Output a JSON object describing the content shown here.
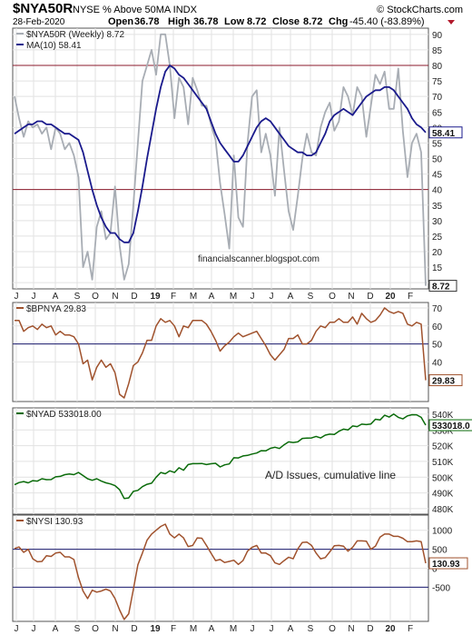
{
  "header": {
    "symbol": "$NYA50R",
    "description": "NYSE % Above 50MA  INDX",
    "watermark": "© StockCharts.com",
    "date": "28-Feb-2020",
    "open_label": "Open",
    "open": "36.78",
    "high_label": "High",
    "high": "36.78",
    "low_label": "Low",
    "low": "8.72",
    "close_label": "Close",
    "close": "8.72",
    "chg_label": "Chg",
    "chg": "-45.40 (-83.89%)"
  },
  "colors": {
    "price": "#a8adb4",
    "ma": "#1a1a8c",
    "hline_red": "#8b1a2b",
    "hline_navy": "#1a1a6e",
    "bpnya": "#a0522d",
    "nyad": "#0a6b0a",
    "nysi": "#a0522d",
    "grid": "#e2e2e2",
    "down_arrow": "#b2182b"
  },
  "x_labels": [
    "J",
    "J",
    "A",
    "S",
    "O",
    "N",
    "D",
    "19",
    "F",
    "M",
    "A",
    "M",
    "J",
    "J",
    "A",
    "S",
    "O",
    "N",
    "D",
    "20",
    "F"
  ],
  "chart_data": [
    {
      "type": "line",
      "panel": "nya50r",
      "series": [
        {
          "name": "$NYA50R (Weekly) 8.72",
          "legend": "$NYA50R (Weekly) 8.72",
          "values": [
            70,
            63,
            57,
            62,
            60,
            61,
            58,
            60,
            53,
            60,
            58,
            53,
            55,
            51,
            44,
            15,
            20,
            11,
            28,
            33,
            24,
            26,
            41,
            22,
            11,
            16,
            35,
            55,
            75,
            80,
            85,
            77,
            90,
            90,
            80,
            63,
            76,
            73,
            61,
            76,
            72,
            67,
            67,
            61,
            56,
            42,
            32,
            21,
            51,
            31,
            28,
            55,
            70,
            72,
            52,
            58,
            51,
            38,
            60,
            46,
            33,
            27,
            38,
            50,
            58,
            52,
            51,
            60,
            65,
            68,
            59,
            62,
            73,
            70,
            64,
            73,
            70,
            57,
            67,
            77,
            74,
            78,
            66,
            66,
            79,
            59,
            44,
            55,
            58,
            52,
            9
          ]
        },
        {
          "name": "MA(10) 58.41",
          "legend": "MA(10) 58.41",
          "values": [
            58,
            59,
            60,
            61,
            61,
            62,
            62,
            61,
            61,
            60,
            59,
            58,
            58,
            57,
            56,
            52,
            46,
            40,
            35,
            31,
            28,
            26,
            26,
            24,
            23,
            23,
            26,
            33,
            41,
            50,
            58,
            66,
            73,
            78,
            80,
            79,
            77,
            76,
            74,
            72,
            70,
            68,
            66,
            62,
            58,
            55,
            53,
            51,
            49,
            49,
            51,
            54,
            57,
            60,
            62,
            63,
            62,
            60,
            58,
            56,
            54,
            53,
            52,
            52,
            51,
            51,
            52,
            55,
            58,
            62,
            64,
            65,
            66,
            65,
            64,
            66,
            68,
            70,
            71,
            72,
            72,
            73,
            73,
            72,
            70,
            68,
            66,
            63,
            61,
            60,
            58.41
          ]
        }
      ],
      "y_ticks": [
        10,
        15,
        20,
        25,
        30,
        35,
        40,
        45,
        50,
        55,
        60,
        65,
        70,
        75,
        80,
        85,
        90
      ],
      "ylim": [
        8,
        92
      ],
      "hlines": [
        80,
        40
      ],
      "last_value_label": "8.72",
      "ma_value_label": "58.41",
      "annotation": "financialscanner.blogspot.com"
    },
    {
      "type": "line",
      "panel": "bpnya",
      "series": [
        {
          "name": "$BPNYA 29.83",
          "legend": "$BPNYA 29.83",
          "values": [
            63,
            63,
            57,
            59,
            60,
            58,
            61,
            59,
            60,
            55,
            57,
            55,
            55,
            54,
            50,
            39,
            41,
            30,
            37,
            41,
            37,
            39,
            34,
            22,
            20,
            28,
            38,
            40,
            45,
            52,
            52,
            60,
            64,
            62,
            63,
            60,
            54,
            60,
            59,
            63,
            63,
            63,
            61,
            57,
            52,
            46,
            49,
            51,
            54,
            56,
            54,
            55,
            56,
            57,
            53,
            49,
            44,
            41,
            44,
            47,
            53,
            53,
            55,
            50,
            50,
            52,
            57,
            60,
            59,
            62,
            62,
            64,
            62,
            62,
            65,
            61,
            67,
            64,
            62,
            63,
            66,
            70,
            68,
            67,
            68,
            67,
            61,
            60,
            62,
            61,
            29.83
          ]
        }
      ],
      "y_ticks": [
        40,
        50,
        60,
        70
      ],
      "ylim": [
        18,
        73
      ],
      "hlines": [
        50
      ],
      "last_value_label": "29.83"
    },
    {
      "type": "line",
      "panel": "nyad",
      "series": [
        {
          "name": "$NYAD 533018.00",
          "legend": "$NYAD 533018.00",
          "values": [
            495200,
            496600,
            497200,
            496400,
            497800,
            497500,
            499000,
            498400,
            498500,
            500200,
            500500,
            501600,
            502000,
            501600,
            503000,
            501000,
            499000,
            498000,
            499000,
            497500,
            496400,
            495700,
            494600,
            492000,
            486500,
            486800,
            491000,
            491600,
            494000,
            495500,
            496200,
            500000,
            503000,
            502200,
            504000,
            503000,
            506000,
            504400,
            508000,
            508600,
            508600,
            508700,
            508000,
            508500,
            508800,
            506500,
            507800,
            508400,
            512300,
            512200,
            513500,
            513800,
            514700,
            515300,
            516800,
            516700,
            518300,
            519000,
            518200,
            520600,
            522400,
            522000,
            522400,
            524600,
            524800,
            524900,
            525900,
            524900,
            526700,
            527300,
            527100,
            529200,
            530500,
            530000,
            532500,
            532100,
            533700,
            533400,
            533800,
            536800,
            536300,
            539300,
            538200,
            540100,
            538000,
            537000,
            538900,
            539700,
            539600,
            538000,
            533018
          ]
        }
      ],
      "y_ticks": [
        480000,
        490000,
        500000,
        510000,
        520000,
        530000,
        540000
      ],
      "y_tick_labels": [
        "480K",
        "490K",
        "500K",
        "510K",
        "520K",
        "530K",
        "540K"
      ],
      "ylim": [
        476500,
        544000
      ],
      "last_value_label": "533018.0",
      "annotation": "A/D Issues, cumulative line"
    },
    {
      "type": "line",
      "panel": "nysi",
      "series": [
        {
          "name": "$NYSI 130.93",
          "legend": "$NYSI 130.93",
          "values": [
            520,
            560,
            420,
            500,
            250,
            170,
            180,
            330,
            310,
            400,
            420,
            300,
            300,
            230,
            -250,
            -600,
            -800,
            -580,
            -630,
            -600,
            -550,
            -600,
            -800,
            -1100,
            -1350,
            -1200,
            -560,
            90,
            400,
            740,
            900,
            1000,
            1100,
            1160,
            900,
            800,
            900,
            800,
            570,
            600,
            800,
            790,
            600,
            400,
            200,
            230,
            150,
            180,
            210,
            100,
            200,
            450,
            550,
            600,
            400,
            400,
            330,
            140,
            100,
            200,
            290,
            250,
            510,
            680,
            690,
            600,
            400,
            250,
            280,
            430,
            590,
            600,
            580,
            450,
            550,
            720,
            720,
            710,
            500,
            580,
            820,
            900,
            900,
            840,
            840,
            790,
            700,
            700,
            720,
            700,
            130.93
          ]
        }
      ],
      "y_ticks": [
        -500,
        0,
        500,
        1000
      ],
      "y_tick_labels": [
        "-500",
        "0",
        "500",
        "1000"
      ],
      "ylim": [
        -1400,
        1400
      ],
      "hlines": [
        500,
        -500
      ],
      "last_value_label": "130.93"
    }
  ]
}
